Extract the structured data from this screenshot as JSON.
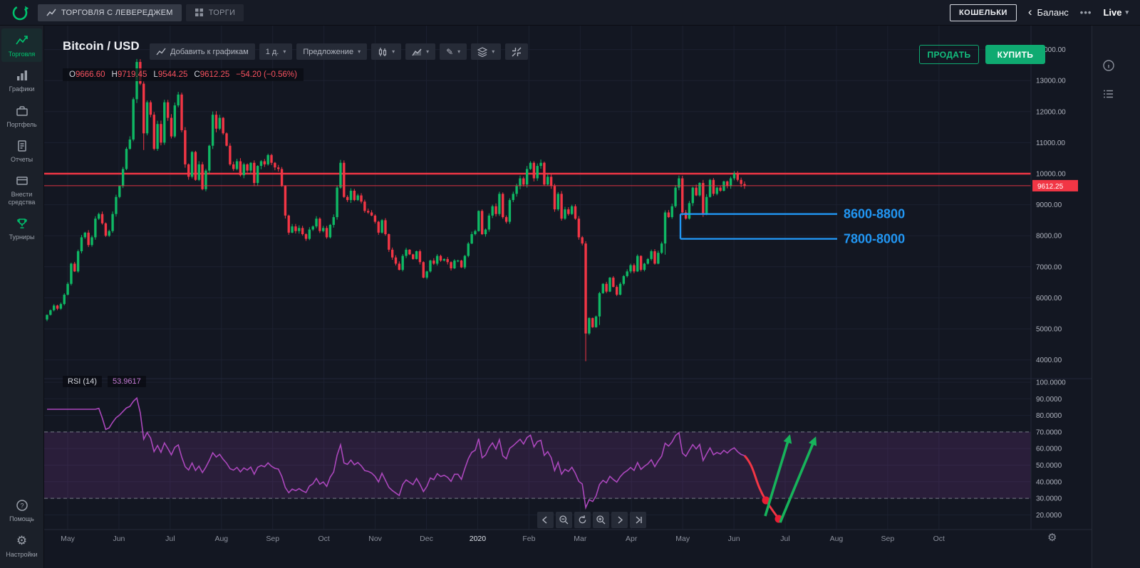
{
  "topbar": {
    "tabs": [
      {
        "label": "ТОРГОВЛЯ С ЛЕВЕРЕДЖЕМ"
      },
      {
        "label": "ТОРГИ"
      }
    ],
    "wallets_button": "КОШЕЛЬКИ",
    "balance_label": "Баланс",
    "live_label": "Live"
  },
  "sidebar": {
    "items": [
      {
        "label": "Торговля",
        "active": true
      },
      {
        "label": "Графики"
      },
      {
        "label": "Портфель"
      },
      {
        "label": "Отчеты"
      },
      {
        "label": "Внести средства"
      },
      {
        "label": "Турниры"
      },
      {
        "label": "Помощь"
      },
      {
        "label": "Настройки"
      }
    ]
  },
  "chart": {
    "symbol": "Bitcoin / USD",
    "toolbar": {
      "add_to_charts": "Добавить к графикам",
      "interval": "1 д.",
      "feed": "Предложение"
    },
    "ohlc": {
      "o_label": "O",
      "o": "9666.60",
      "h_label": "H",
      "h": "9719.45",
      "l_label": "L",
      "l": "9544.25",
      "c_label": "C",
      "c": "9612.25",
      "change": "−54.20 (−0.56%)"
    },
    "sell_button": "ПРОДАТЬ",
    "buy_button": "КУПИТЬ",
    "price_label": "9612.25",
    "rsi_title": "RSI (14)",
    "rsi_value": "53.9617"
  },
  "colors": {
    "green": "#0fb864",
    "red": "#f23645",
    "blue": "#2196f3",
    "purple": "#ab47bc",
    "arrow_green": "#17b35b",
    "accent": "#00c26e"
  },
  "chart_data": {
    "type": "candlestick",
    "symbol": "Bitcoin / USD",
    "interval": "1 д.",
    "open_first": 5300,
    "closes": [
      5450,
      5600,
      5750,
      5650,
      5800,
      6100,
      6450,
      7100,
      6850,
      7500,
      7950,
      8100,
      7700,
      7950,
      8550,
      8700,
      8400,
      8000,
      8150,
      8700,
      9250,
      9600,
      10150,
      10800,
      11100,
      12400,
      13600,
      12900,
      11300,
      12300,
      11900,
      10800,
      11600,
      11000,
      12300,
      11800,
      11200,
      12200,
      12550,
      11400,
      10300,
      9900,
      10700,
      9800,
      10300,
      9500,
      10100,
      10900,
      11900,
      11450,
      11800,
      11300,
      10900,
      10300,
      10150,
      10400,
      9950,
      10300,
      10100,
      10350,
      9700,
      10250,
      10400,
      10300,
      10600,
      10350,
      10200,
      10150,
      9600,
      8650,
      8100,
      8300,
      8150,
      8250,
      8050,
      7900,
      8200,
      8300,
      8550,
      8150,
      8250,
      7950,
      8350,
      8600,
      9550,
      10350,
      9250,
      9150,
      9450,
      9150,
      9300,
      9100,
      8800,
      8750,
      8650,
      8450,
      8100,
      8500,
      8050,
      7550,
      7300,
      7100,
      6900,
      7350,
      7550,
      7400,
      7250,
      7500,
      7150,
      6650,
      6850,
      7200,
      7100,
      7350,
      7200,
      7250,
      7150,
      6950,
      7200,
      7200,
      6980,
      7350,
      7750,
      8050,
      8150,
      8800,
      8050,
      8200,
      8650,
      8950,
      8700,
      9350,
      8600,
      8450,
      9150,
      9350,
      9600,
      9850,
      9650,
      10150,
      10350,
      9850,
      10250,
      10350,
      9650,
      9900,
      9600,
      8850,
      9350,
      8550,
      8850,
      8700,
      8950,
      8550,
      7950,
      7750,
      4850,
      5350,
      5050,
      5400,
      6150,
      6450,
      6200,
      6650,
      6350,
      6100,
      6450,
      6700,
      6850,
      7050,
      6850,
      7350,
      6900,
      7100,
      7250,
      7500,
      7100,
      7450,
      7750,
      8750,
      8600,
      8950,
      9550,
      9850,
      8750,
      8550,
      9050,
      9550,
      9300,
      9700,
      8700,
      9250,
      9800,
      9350,
      9550,
      9450,
      9750,
      9600,
      9850,
      10000,
      9800,
      9666.6,
      9612.25
    ],
    "price_axis": [
      14000,
      13000,
      12000,
      11000,
      10000,
      9000,
      8000,
      7000,
      6000,
      5000,
      4000
    ],
    "rsi_axis": [
      100,
      90,
      80,
      70,
      60,
      50,
      40,
      30,
      20
    ],
    "time_axis_labels": [
      "May",
      "Jun",
      "Jul",
      "Aug",
      "Sep",
      "Oct",
      "Nov",
      "Dec",
      "2020",
      "Feb",
      "Mar",
      "Apr",
      "May",
      "Jun",
      "Jul",
      "Aug",
      "Sep",
      "Oct"
    ],
    "levels": {
      "resistance": 10000,
      "current_price": 9612.25
    },
    "zones": [
      {
        "label": "8600-8800",
        "low": 8600,
        "high": 8800
      },
      {
        "label": "7800-8000",
        "low": 7800,
        "high": 8000
      }
    ],
    "rsi": {
      "period": 14,
      "value": 53.9617,
      "bands": [
        30,
        70
      ]
    },
    "ohlc": {
      "open": 9666.6,
      "high": 9719.45,
      "low": 9544.25,
      "close": 9612.25,
      "change": -54.2,
      "change_pct": -0.56
    }
  }
}
